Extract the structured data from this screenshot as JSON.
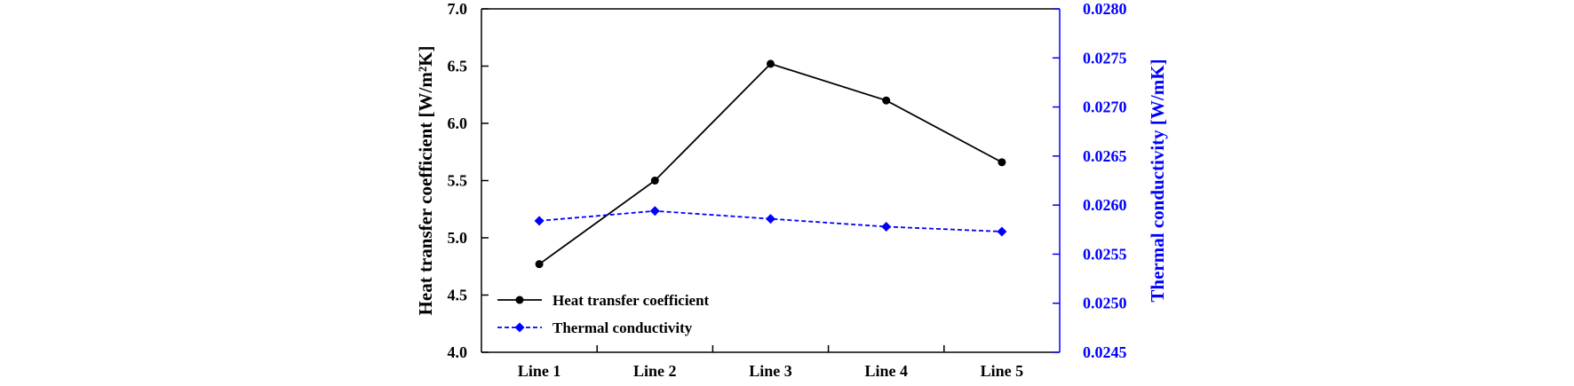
{
  "chart_data": {
    "type": "line",
    "categories": [
      "Line 1",
      "Line 2",
      "Line 3",
      "Line 4",
      "Line 5"
    ],
    "series": [
      {
        "name": "Heat transfer coefficient",
        "axis": "left",
        "color": "#000000",
        "line_style": "solid",
        "marker": "circle",
        "values": [
          4.77,
          5.5,
          6.52,
          6.2,
          5.66
        ]
      },
      {
        "name": "Thermal conductivity",
        "axis": "right",
        "color": "#0000ff",
        "line_style": "dashed",
        "marker": "diamond",
        "values": [
          0.02584,
          0.02594,
          0.02586,
          0.02578,
          0.02573
        ]
      }
    ],
    "ylabel_left": "Heat transfer coefficient [W/m²K]",
    "ylabel_right": "Thermal conductivity [W/mK]",
    "ylim_left": [
      4.0,
      7.0
    ],
    "ylim_right": [
      0.0245,
      0.028
    ],
    "yticks_left": [
      "4.0",
      "4.5",
      "5.0",
      "5.5",
      "6.0",
      "6.5",
      "7.0"
    ],
    "yticks_right": [
      "0.0245",
      "0.0250",
      "0.0255",
      "0.0260",
      "0.0265",
      "0.0270",
      "0.0275",
      "0.0280"
    ],
    "grid": false,
    "legend": "bottom-left",
    "right_axis_color": "#0000ff"
  }
}
